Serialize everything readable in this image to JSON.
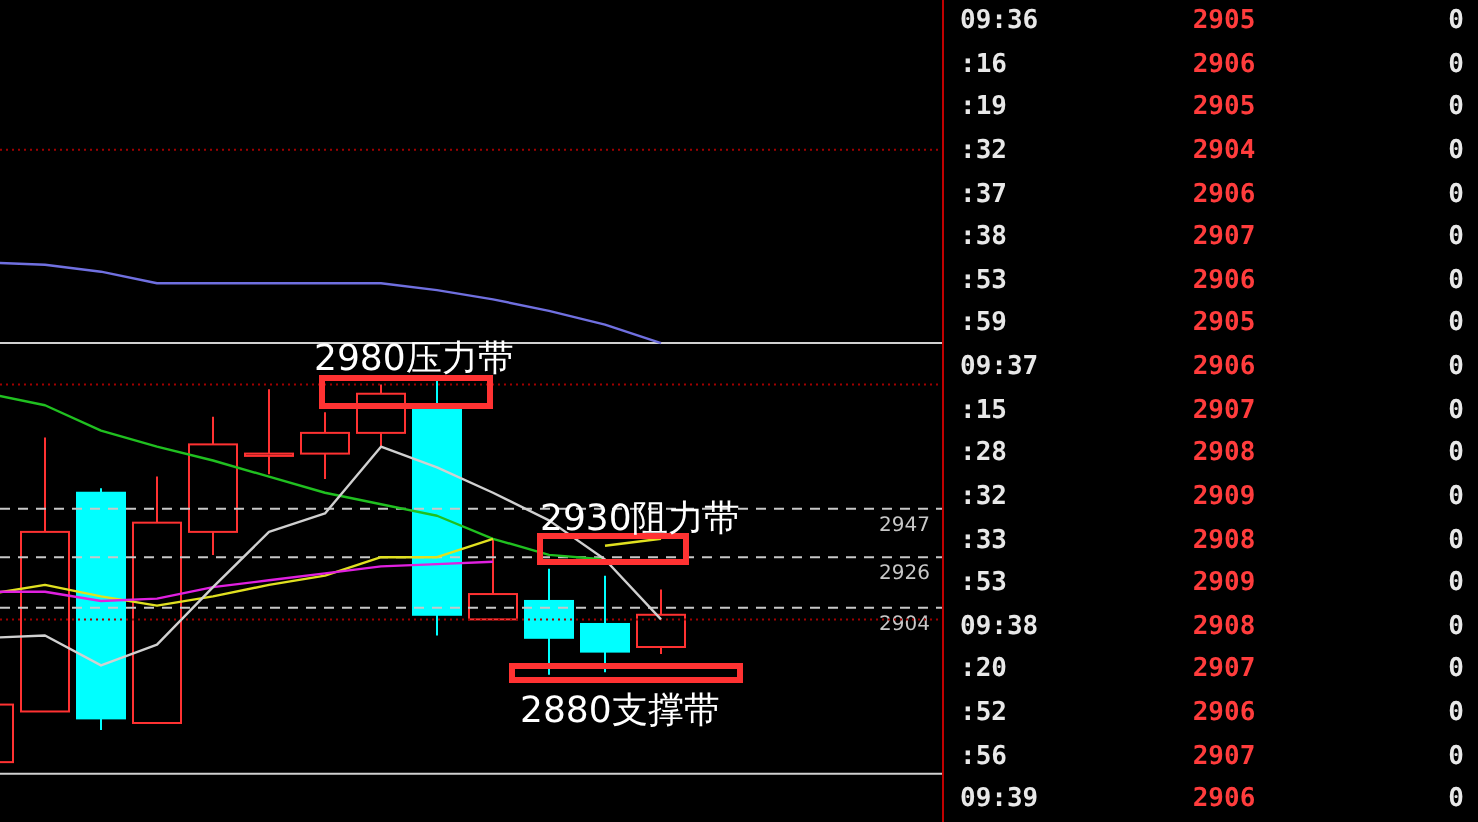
{
  "chart_data": [
    {
      "type": "candlestick",
      "categories": [
        null,
        null,
        null,
        null,
        null,
        null,
        null,
        null,
        null,
        null,
        null,
        null,
        null
      ],
      "ohlc": [
        [
          2837,
          2862,
          2837,
          2862
        ],
        [
          2859,
          2978,
          2859,
          2937
        ],
        [
          2954,
          2956,
          2851,
          2856
        ],
        [
          2854,
          2961,
          2854,
          2941
        ],
        [
          2937,
          2987,
          2927,
          2975
        ],
        [
          2970,
          2999,
          2962,
          2971
        ],
        [
          2971,
          2989,
          2960,
          2980
        ],
        [
          2980,
          3001,
          2974,
          2997
        ],
        [
          2992,
          3003,
          2892,
          2901
        ],
        [
          2899,
          2934,
          2899,
          2910
        ],
        [
          2907,
          2921,
          2875,
          2891
        ],
        [
          2897,
          2918,
          2876,
          2885
        ],
        [
          2887,
          2912,
          2884,
          2901
        ]
      ],
      "colors": [
        "#ff3232",
        "#ff3232",
        "#00ffff",
        "#ff3232",
        "#ff3232",
        "#ff3232",
        "#ff3232",
        "#ff3232",
        "#00ffff",
        "#ff3232",
        "#00ffff",
        "#00ffff",
        "#ff3232"
      ],
      "series": [
        {
          "type": "line",
          "color": "#7070e0",
          "values": [
            3054,
            3053,
            3050,
            3045,
            3045,
            3045,
            3045,
            3045,
            3042,
            3038,
            3033,
            3027,
            3019
          ]
        },
        {
          "type": "line",
          "color": "#20c020",
          "values": [
            2997,
            2992,
            2981,
            2974,
            2968,
            2961,
            2954,
            2949,
            2944,
            2934,
            2927,
            2925,
            null
          ]
        },
        {
          "type": "line",
          "color": "#e0e020",
          "values": [
            2910,
            2914,
            2909,
            2905,
            2909,
            2914,
            2918,
            2926,
            2926,
            2934,
            null,
            2931,
            2934
          ]
        },
        {
          "type": "line",
          "color": "#e020e0",
          "values": [
            2911,
            2911,
            2907,
            2908,
            2913,
            2916,
            2919,
            2922,
            2923,
            2924,
            null,
            null,
            null
          ]
        },
        {
          "type": "line",
          "color": "#d0d0d0",
          "values": [
            2891,
            2892,
            2879,
            2888,
            2913,
            2937,
            2945,
            2974,
            2965,
            2954,
            2942,
            2925,
            2899
          ]
        }
      ],
      "ylim": [
        2811,
        3168
      ],
      "tick_labels": false,
      "ref_lines": [
        {
          "axis": "y",
          "value": 3103,
          "color": "#a00000",
          "line_style": "dotted"
        },
        {
          "axis": "y",
          "value": 3019,
          "color": "#d0d0d0",
          "line_style": "solid"
        },
        {
          "axis": "y",
          "value": 3001,
          "color": "#a00000",
          "line_style": "dotted"
        },
        {
          "axis": "y",
          "value": 2947,
          "label": "2947",
          "color": "#c8c8c8",
          "line_style": "dashed"
        },
        {
          "axis": "y",
          "value": 2926,
          "label": "2926",
          "color": "#c8c8c8",
          "line_style": "dashed"
        },
        {
          "axis": "y",
          "value": 2904,
          "label": "2904",
          "color": "#c8c8c8",
          "line_style": "dashed"
        },
        {
          "axis": "y",
          "value": 2899,
          "color": "#a00000",
          "line_style": "dotted"
        },
        {
          "axis": "y",
          "value": 2832,
          "color": "#d0d0d0",
          "line_style": "solid"
        }
      ],
      "annotations": [
        "2980压力带",
        "2930阻力带",
        "2880支撑带"
      ]
    },
    {
      "type": "other",
      "annotations": [
        "09:36",
        "2905",
        "0",
        ":16",
        "2906",
        "0",
        ":19",
        "2905",
        "0",
        ":32",
        "2904",
        "0",
        ":37",
        "2906",
        "0",
        ":38",
        "2907",
        "0",
        ":53",
        "2906",
        "0",
        ":59",
        "2905",
        "0",
        "09:37",
        "2906",
        "0",
        ":15",
        "2907",
        "0",
        ":28",
        "2908",
        "0",
        ":32",
        "2909",
        "0",
        ":33",
        "2908",
        "0",
        ":53",
        "2909",
        "0",
        "09:38",
        "2908",
        "0",
        ":20",
        "2907",
        "0",
        ":52",
        "2906",
        "0",
        ":56",
        "2907",
        "0",
        "09:39",
        "2906",
        "0"
      ]
    }
  ]
}
